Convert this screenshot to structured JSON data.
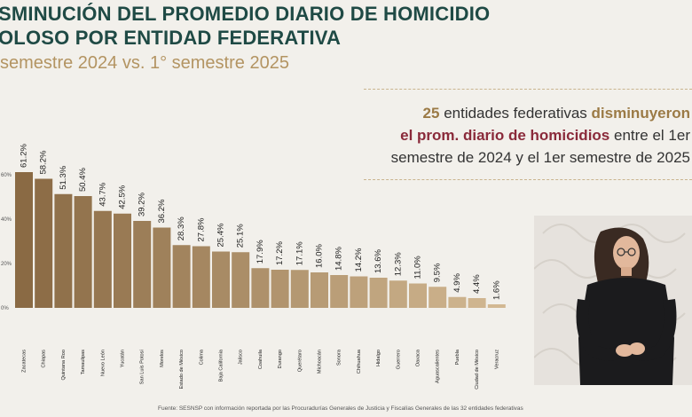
{
  "header": {
    "title_line1": "SMINUCIÓN DEL PROMEDIO DIARIO DE HOMICIDIO",
    "title_line2": "OLOSO POR ENTIDAD FEDERATIVA",
    "subtitle": "semestre 2024 vs. 1° semestre 2025"
  },
  "callout": {
    "count": "25",
    "text1": "entidades federativas",
    "highlight1": "disminuyeron",
    "highlight2": "el prom. diario de homicidios",
    "text2": "entre el 1er",
    "text3": "semestre de 2024 y el 1er semestre de 2025"
  },
  "source": "Fuente: SESNSP con información reportada por las Procuradurías Generales de Justicia y Fiscalías Generales de las 32 entidades federativas",
  "colors": {
    "title": "#1f4a45",
    "subtitle": "#b39462",
    "bar_dark": "#8a6a44",
    "bar_light": "#d2b892",
    "highlight": "#9b7a45",
    "highlight_red": "#8a2a3a"
  },
  "chart_data": {
    "type": "bar",
    "categories": [
      "Zacatecas",
      "Chiapas",
      "Quintana Roo",
      "Tamaulipas",
      "Nuevo León",
      "Yucatán",
      "San Luis Potosí",
      "Morelos",
      "Estado de México",
      "Colima",
      "Baja California",
      "Jalisco",
      "Coahuila",
      "Durango",
      "Querétaro",
      "Michoacán",
      "Sonora",
      "Chihuahua",
      "Hidalgo",
      "Guerrero",
      "Oaxaca",
      "Aguascalientes",
      "Puebla",
      "Ciudad de México",
      "Veracruz"
    ],
    "values": [
      61.2,
      58.2,
      51.3,
      50.4,
      43.7,
      42.5,
      39.2,
      36.2,
      28.3,
      27.8,
      25.4,
      25.1,
      17.9,
      17.2,
      17.1,
      16.0,
      14.8,
      14.2,
      13.6,
      12.3,
      11.0,
      9.5,
      4.9,
      4.4,
      1.6
    ],
    "value_labels": [
      "61.2%",
      "58.2%",
      "51.3%",
      "50.4%",
      "43.7%",
      "42.5%",
      "39.2%",
      "36.2%",
      "28.3%",
      "27.8%",
      "25.4%",
      "25.1%",
      "17.9%",
      "17.2%",
      "17.1%",
      "16.0%",
      "14.8%",
      "14.2%",
      "13.6%",
      "12.3%",
      "11.0%",
      "9.5%",
      "4.9%",
      "4.4%",
      "1.6%"
    ],
    "yticks": [
      "0%",
      "20%",
      "40%",
      "60%"
    ],
    "ytick_values": [
      0,
      20,
      40,
      60
    ],
    "ylim": [
      0,
      70
    ],
    "grid": false
  }
}
